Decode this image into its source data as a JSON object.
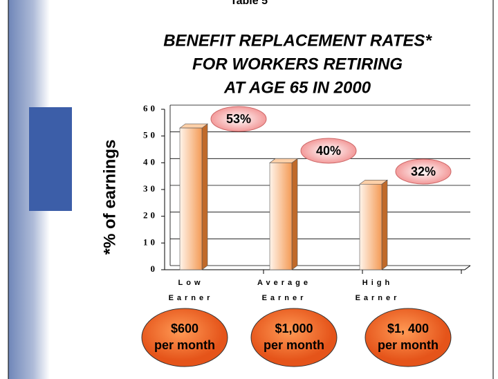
{
  "header": "Table 5",
  "chart_data": {
    "type": "bar3d",
    "title": [
      "BENEFIT REPLACEMENT RATES*",
      "FOR WORKERS RETIRING",
      "AT AGE 65 IN 2000"
    ],
    "y_label": "*% of earnings",
    "categories": [
      "Low Earner",
      "Average Earner",
      "High Earner"
    ],
    "values": [
      53,
      40,
      32
    ],
    "value_labels": [
      "53%",
      "40%",
      "32%"
    ],
    "color": "#f7a060",
    "ylim": [
      0,
      60
    ],
    "yticks": [
      0,
      10,
      20,
      30,
      40,
      50,
      60
    ],
    "grid": true
  },
  "income_labels": [
    [
      "$600",
      "per month"
    ],
    [
      "$1,000",
      "per month"
    ],
    [
      "$1, 400",
      "per month"
    ]
  ]
}
